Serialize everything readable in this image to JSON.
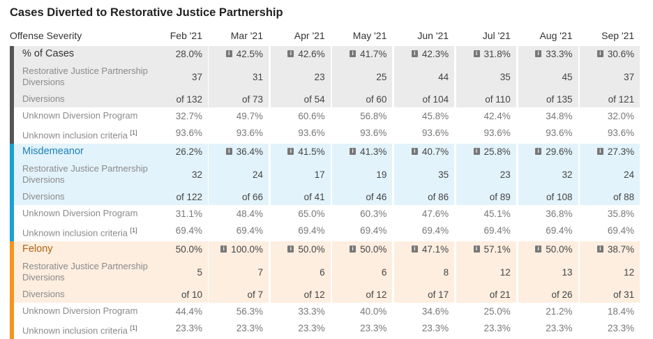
{
  "title": "Cases Diverted to Restorative Justice Partnership",
  "header": {
    "label": "Offense Severity",
    "months": [
      "Feb '21",
      "Mar '21",
      "Apr '21",
      "May '21",
      "Jun '21",
      "Jul '21",
      "Aug '21",
      "Sep '21"
    ]
  },
  "row_labels": {
    "rjp": "Restorative Justice Partnership Diversions",
    "diversions": "Diversions",
    "unknown_program": "Unknown Diversion Program",
    "unknown_criteria": "Unknown inclusion criteria",
    "footnote": "[1]"
  },
  "info_icon": "info-icon",
  "sections": [
    {
      "name": "% of Cases",
      "bar_color": "#555555",
      "tint": "#ebebeb",
      "label_color": "#333333",
      "percent": [
        "28.0%",
        "42.5%",
        "42.6%",
        "41.7%",
        "42.3%",
        "31.8%",
        "33.3%",
        "30.6%"
      ],
      "rjp": [
        "37",
        "31",
        "23",
        "25",
        "44",
        "35",
        "45",
        "37"
      ],
      "of": [
        "of 132",
        "of 73",
        "of 54",
        "of 60",
        "of 104",
        "of 110",
        "of 135",
        "of 121"
      ],
      "unknown_program": [
        "32.7%",
        "49.7%",
        "60.6%",
        "56.8%",
        "45.8%",
        "42.4%",
        "34.8%",
        "32.0%"
      ],
      "unknown_criteria": [
        "93.6%",
        "93.6%",
        "93.6%",
        "93.6%",
        "93.6%",
        "93.6%",
        "93.6%",
        "93.6%"
      ]
    },
    {
      "name": "Misdemeanor",
      "bar_color": "#1a9fd9",
      "tint": "#e3f3fb",
      "label_color": "#1a7fb8",
      "percent": [
        "26.2%",
        "36.4%",
        "41.5%",
        "41.3%",
        "40.7%",
        "25.8%",
        "29.6%",
        "27.3%"
      ],
      "rjp": [
        "32",
        "24",
        "17",
        "19",
        "35",
        "23",
        "32",
        "24"
      ],
      "of": [
        "of 122",
        "of 66",
        "of 41",
        "of 46",
        "of 86",
        "of 89",
        "of 108",
        "of 88"
      ],
      "unknown_program": [
        "31.1%",
        "48.4%",
        "65.0%",
        "60.3%",
        "47.6%",
        "45.1%",
        "36.8%",
        "35.8%"
      ],
      "unknown_criteria": [
        "69.4%",
        "69.4%",
        "69.4%",
        "69.4%",
        "69.4%",
        "69.4%",
        "69.4%",
        "69.4%"
      ]
    },
    {
      "name": "Felony",
      "bar_color": "#f7941d",
      "tint": "#fdeee0",
      "label_color": "#b0620e",
      "percent": [
        "50.0%",
        "100.0%",
        "50.0%",
        "50.0%",
        "47.1%",
        "57.1%",
        "50.0%",
        "38.7%"
      ],
      "rjp": [
        "5",
        "7",
        "6",
        "6",
        "8",
        "12",
        "13",
        "12"
      ],
      "of": [
        "of 10",
        "of 7",
        "of 12",
        "of 12",
        "of 17",
        "of 21",
        "of 26",
        "of 31"
      ],
      "unknown_program": [
        "44.4%",
        "56.3%",
        "33.3%",
        "40.0%",
        "34.6%",
        "25.0%",
        "21.2%",
        "18.4%"
      ],
      "unknown_criteria": [
        "23.3%",
        "23.3%",
        "23.3%",
        "23.3%",
        "23.3%",
        "23.3%",
        "23.3%",
        "23.3%"
      ]
    }
  ]
}
